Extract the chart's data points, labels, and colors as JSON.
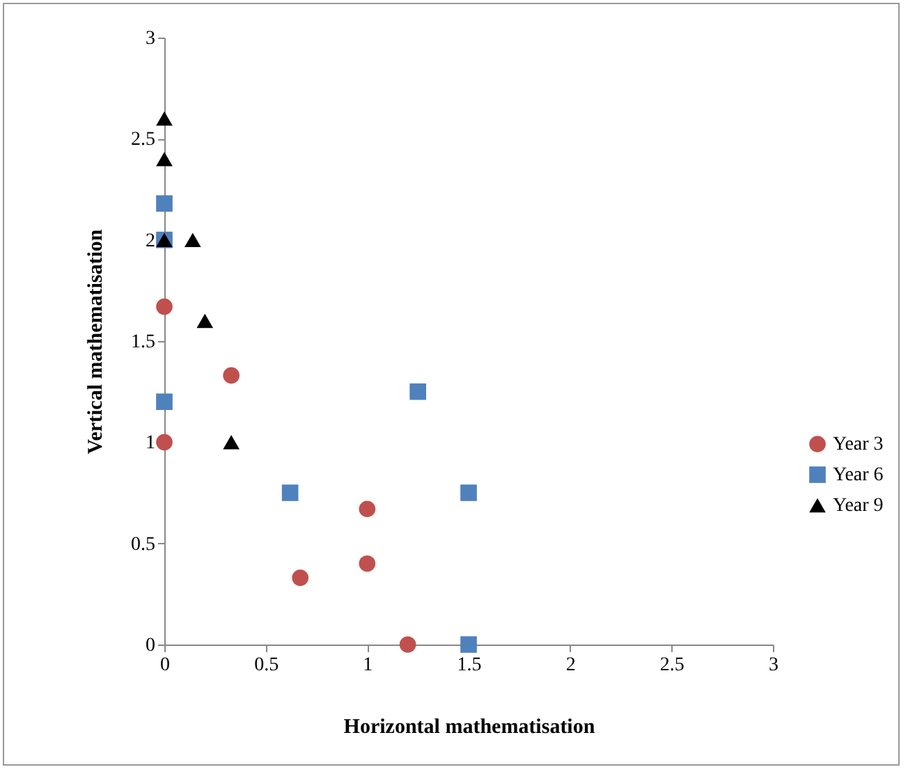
{
  "chart_data": {
    "type": "scatter",
    "xlabel": "Horizontal mathematisation",
    "ylabel": "Vertical mathematisation",
    "xlim": [
      0,
      3
    ],
    "ylim": [
      0,
      3
    ],
    "xticks": [
      0,
      0.5,
      1,
      1.5,
      2,
      2.5,
      3
    ],
    "yticks": [
      0,
      0.5,
      1,
      1.5,
      2,
      2.5,
      3
    ],
    "grid": false,
    "legend": "right",
    "series": [
      {
        "name": "Year 3",
        "color": "#c0504d",
        "marker": "circle",
        "x": [
          0,
          0,
          0.33,
          1,
          1,
          0.67,
          1.2
        ],
        "values": [
          1.67,
          1,
          1.33,
          0.67,
          0.4,
          0.33,
          0
        ]
      },
      {
        "name": "Year 6",
        "color": "#4f81bd",
        "marker": "square",
        "x": [
          0,
          0,
          0,
          0.62,
          1.25,
          1.5,
          1.5
        ],
        "values": [
          2.18,
          2,
          1.2,
          0.75,
          1.25,
          0.75,
          0
        ]
      },
      {
        "name": "Year 9",
        "color": "#000000",
        "marker": "triangle",
        "x": [
          0,
          0,
          0,
          0.14,
          0.2,
          0.33
        ],
        "values": [
          2.6,
          2.4,
          2,
          2,
          1.6,
          1
        ]
      }
    ]
  }
}
